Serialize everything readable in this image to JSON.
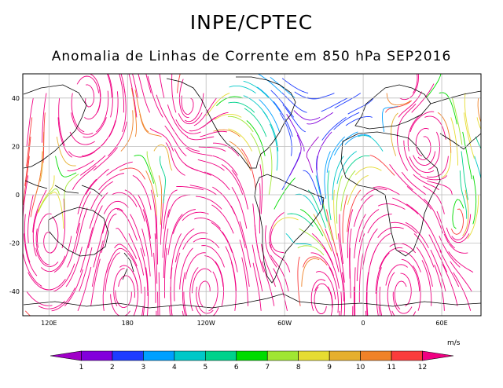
{
  "header": {
    "title": "INPE/CPTEC",
    "subtitle": "Anomalia de Linhas de Corrente em 850 hPa SEP2016"
  },
  "map": {
    "lat_labels": [
      "40",
      "20",
      "0",
      "-20",
      "-40"
    ],
    "lat_values": [
      40,
      20,
      0,
      -20,
      -40
    ],
    "lon_labels": [
      "120E",
      "180",
      "120W",
      "60W",
      "0",
      "60E"
    ],
    "lon_values": [
      120,
      180,
      240,
      300,
      360,
      420
    ],
    "lat_range": [
      -50,
      50
    ],
    "lon_range": [
      100,
      450
    ],
    "grid": true
  },
  "colorbar": {
    "units": "m/s",
    "labels": [
      "1",
      "2",
      "3",
      "4",
      "5",
      "6",
      "7",
      "8",
      "9",
      "10",
      "11",
      "12"
    ],
    "colors": [
      "#a000c8",
      "#8200dc",
      "#1e3cff",
      "#00a0ff",
      "#00c8c8",
      "#00d28c",
      "#00dc00",
      "#a0e632",
      "#e6dc32",
      "#e6af2d",
      "#f08228",
      "#fa3c3c",
      "#f00082"
    ]
  }
}
